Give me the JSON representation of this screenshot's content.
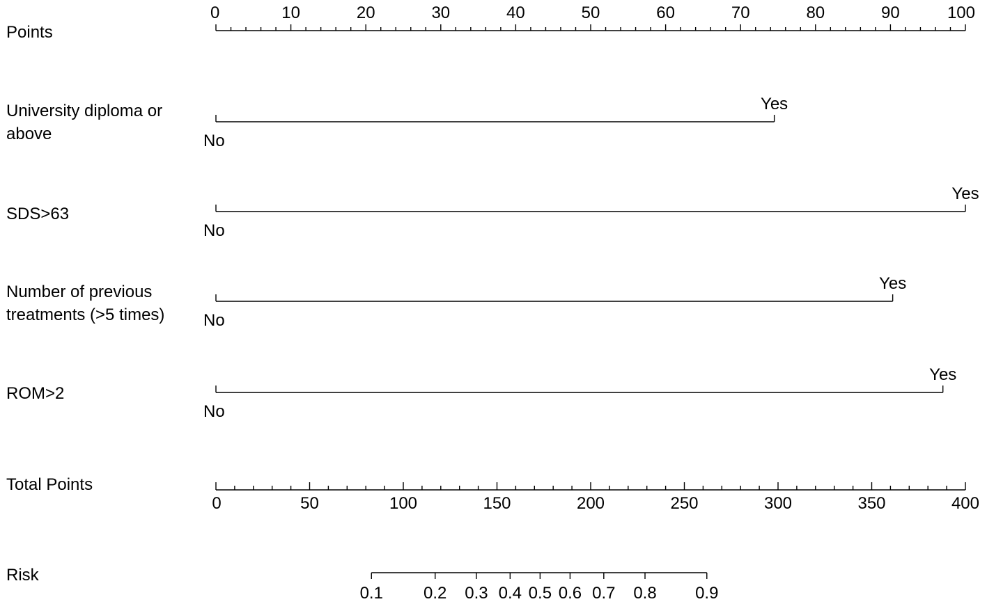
{
  "chart_data": {
    "type": "nomogram",
    "line_color": "#000000",
    "background": "#ffffff",
    "points_scale": {
      "label": "Points",
      "range": [
        0,
        100
      ],
      "major_ticks": [
        0,
        10,
        20,
        30,
        40,
        50,
        60,
        70,
        80,
        90,
        100
      ],
      "minor_step": 2,
      "tick_labels": [
        "0",
        "10",
        "20",
        "30",
        "40",
        "50",
        "60",
        "70",
        "80",
        "90",
        "100"
      ]
    },
    "variables": [
      {
        "label_lines": [
          "University diploma or",
          "above"
        ],
        "levels": [
          {
            "label": "No",
            "points": 0
          },
          {
            "label": "Yes",
            "points": 74.5
          }
        ]
      },
      {
        "label_lines": [
          "SDS>63"
        ],
        "levels": [
          {
            "label": "No",
            "points": 0
          },
          {
            "label": "Yes",
            "points": 100
          }
        ]
      },
      {
        "label_lines": [
          "Number of previous",
          "treatments (>5 times)"
        ],
        "levels": [
          {
            "label": "No",
            "points": 0
          },
          {
            "label": "Yes",
            "points": 90.3
          }
        ]
      },
      {
        "label_lines": [
          "ROM>2"
        ],
        "levels": [
          {
            "label": "No",
            "points": 0
          },
          {
            "label": "Yes",
            "points": 97
          }
        ]
      }
    ],
    "total_points_scale": {
      "label": "Total Points",
      "range": [
        0,
        400
      ],
      "major_ticks": [
        0,
        50,
        100,
        150,
        200,
        250,
        300,
        350,
        400
      ],
      "minor_step": 10,
      "tick_labels": [
        "0",
        "50",
        "100",
        "150",
        "200",
        "250",
        "300",
        "350",
        "400"
      ]
    },
    "risk_scale": {
      "label": "Risk",
      "total_points_range": [
        83,
        262
      ],
      "ticks": [
        {
          "label": "0.1",
          "total_points": 83
        },
        {
          "label": "0.2",
          "total_points": 117
        },
        {
          "label": "0.3",
          "total_points": 139
        },
        {
          "label": "0.4",
          "total_points": 157
        },
        {
          "label": "0.5",
          "total_points": 173
        },
        {
          "label": "0.6",
          "total_points": 189
        },
        {
          "label": "0.7",
          "total_points": 207
        },
        {
          "label": "0.8",
          "total_points": 229
        },
        {
          "label": "0.9",
          "total_points": 262
        }
      ]
    }
  }
}
